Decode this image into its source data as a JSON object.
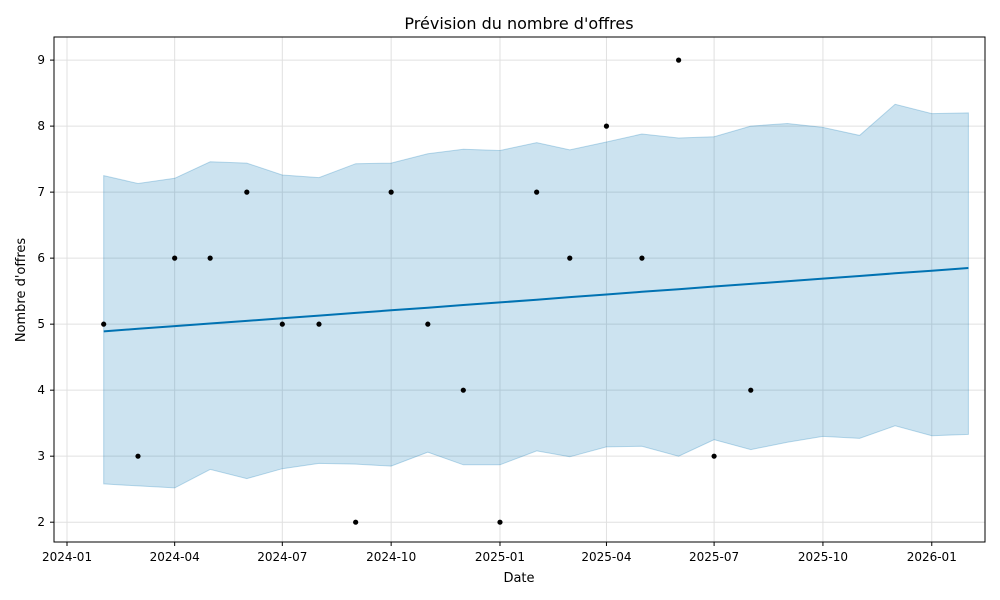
{
  "chart_data": {
    "type": "line",
    "title": "Prévision du nombre d'offres",
    "xlabel": "Date",
    "ylabel": "Nombre d'offres",
    "xlim": [
      "2023-12-21",
      "2026-02-15"
    ],
    "ylim": [
      1.7,
      9.35
    ],
    "grid": true,
    "x_ticks": [
      "2024-01-01",
      "2024-04-01",
      "2024-07-01",
      "2024-10-01",
      "2025-01-01",
      "2025-04-01",
      "2025-07-01",
      "2025-10-01",
      "2026-01-01"
    ],
    "x_tick_labels": [
      "2024-01",
      "2024-04",
      "2024-07",
      "2024-10",
      "2025-01",
      "2025-04",
      "2025-07",
      "2025-10",
      "2026-01"
    ],
    "y_ticks": [
      2,
      3,
      4,
      5,
      6,
      7,
      8,
      9
    ],
    "y_tick_labels": [
      "2",
      "3",
      "4",
      "5",
      "6",
      "7",
      "8",
      "9"
    ],
    "observed": {
      "x": [
        "2024-02-01",
        "2024-03-01",
        "2024-04-01",
        "2024-05-01",
        "2024-06-01",
        "2024-07-01",
        "2024-08-01",
        "2024-09-01",
        "2024-10-01",
        "2024-11-01",
        "2024-12-01",
        "2025-01-01",
        "2025-02-01",
        "2025-03-01",
        "2025-04-01",
        "2025-05-01",
        "2025-06-01",
        "2025-07-01",
        "2025-08-01"
      ],
      "y": [
        5,
        3,
        6,
        6,
        7,
        5,
        5,
        2,
        7,
        5,
        4,
        2,
        7,
        6,
        8,
        6,
        9,
        3,
        4
      ]
    },
    "forecast": {
      "x": [
        "2024-02-01",
        "2024-03-01",
        "2024-04-01",
        "2024-05-01",
        "2024-06-01",
        "2024-07-01",
        "2024-08-01",
        "2024-09-01",
        "2024-10-01",
        "2024-11-01",
        "2024-12-01",
        "2025-01-01",
        "2025-02-01",
        "2025-03-01",
        "2025-04-01",
        "2025-05-01",
        "2025-06-01",
        "2025-07-01",
        "2025-08-01",
        "2025-09-01",
        "2025-10-01",
        "2025-11-01",
        "2025-12-01",
        "2026-01-01",
        "2026-02-01"
      ],
      "yhat": [
        4.89,
        4.93,
        4.97,
        5.01,
        5.05,
        5.09,
        5.13,
        5.17,
        5.21,
        5.25,
        5.29,
        5.33,
        5.37,
        5.41,
        5.45,
        5.49,
        5.53,
        5.57,
        5.61,
        5.65,
        5.69,
        5.73,
        5.77,
        5.81,
        5.85
      ],
      "upper": [
        7.25,
        7.13,
        7.21,
        7.46,
        7.44,
        7.26,
        7.22,
        7.43,
        7.44,
        7.58,
        7.65,
        7.63,
        7.75,
        7.64,
        7.76,
        7.88,
        7.82,
        7.84,
        8.0,
        8.04,
        7.98,
        7.86,
        8.33,
        8.19,
        8.2
      ],
      "lower": [
        2.58,
        2.55,
        2.52,
        2.8,
        2.66,
        2.81,
        2.89,
        2.88,
        2.85,
        3.06,
        2.87,
        2.87,
        3.08,
        2.99,
        3.14,
        3.15,
        3.0,
        3.25,
        3.1,
        3.21,
        3.3,
        3.27,
        3.46,
        3.31,
        3.33
      ]
    },
    "colors": {
      "forecast_line": "#0072B2",
      "interval_fill": "#0072B2",
      "points": "#000000",
      "grid": "#e0e0e0",
      "axes": "#000000"
    }
  }
}
